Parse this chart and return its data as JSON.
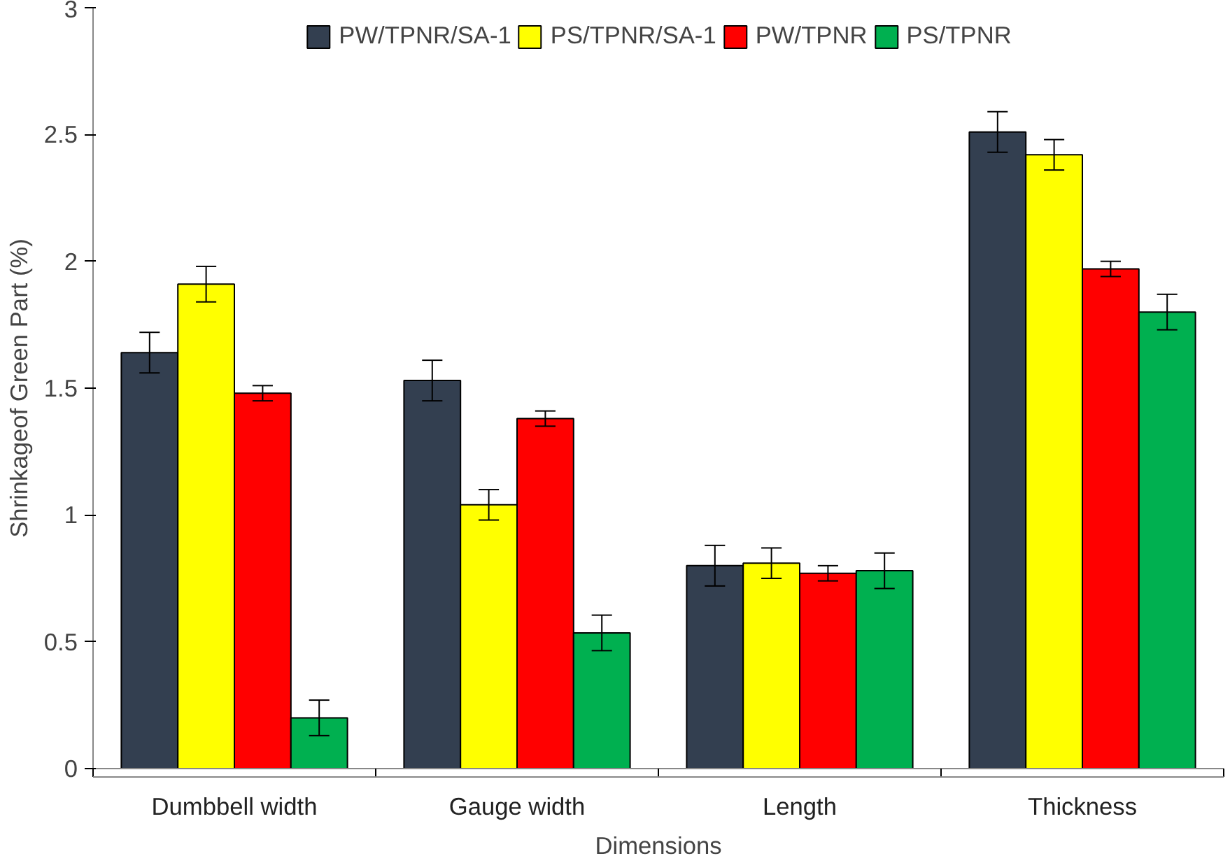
{
  "chart_data": {
    "type": "bar",
    "xlabel": "Dimensions",
    "ylabel": "Shrinkageof Green Part (%)",
    "categories": [
      "Dumbbell width",
      "Gauge width",
      "Length",
      "Thickness"
    ],
    "series": [
      {
        "name": "PW/TPNR/SA-1",
        "color": "#333f50",
        "values": [
          1.64,
          1.53,
          0.8,
          2.51
        ],
        "errors": [
          0.08,
          0.08,
          0.08,
          0.08
        ]
      },
      {
        "name": "PS/TPNR/SA-1",
        "color": "#ffff00",
        "values": [
          1.91,
          1.04,
          0.81,
          2.42
        ],
        "errors": [
          0.07,
          0.06,
          0.06,
          0.06
        ]
      },
      {
        "name": "PW/TPNR",
        "color": "#ff0000",
        "values": [
          1.48,
          1.38,
          0.77,
          1.97
        ],
        "errors": [
          0.03,
          0.03,
          0.03,
          0.03
        ]
      },
      {
        "name": "PS/TPNR",
        "color": "#00b050",
        "values": [
          0.2,
          0.535,
          0.78,
          1.8
        ],
        "errors": [
          0.07,
          0.07,
          0.07,
          0.07
        ]
      }
    ],
    "ylim": [
      0,
      3
    ],
    "yticks": [
      0,
      0.5,
      1,
      1.5,
      2,
      2.5,
      3
    ],
    "grid": false,
    "legend": "top"
  }
}
